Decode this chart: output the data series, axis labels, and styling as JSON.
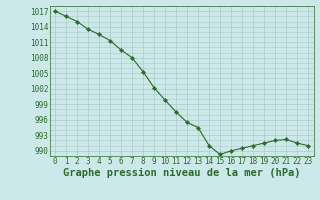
{
  "x": [
    0,
    1,
    2,
    3,
    4,
    5,
    6,
    7,
    8,
    9,
    10,
    11,
    12,
    13,
    14,
    15,
    16,
    17,
    18,
    19,
    20,
    21,
    22,
    23
  ],
  "y": [
    1017,
    1016.0,
    1015.0,
    1013.5,
    1012.5,
    1011.3,
    1009.5,
    1008.0,
    1005.3,
    1002.2,
    999.8,
    997.5,
    995.5,
    994.5,
    991.0,
    989.3,
    990.0,
    990.5,
    991.0,
    991.5,
    992.0,
    992.2,
    991.5,
    991.0
  ],
  "ylim": [
    989,
    1018
  ],
  "xlim": [
    -0.5,
    23.5
  ],
  "yticks": [
    990,
    993,
    996,
    999,
    1002,
    1005,
    1008,
    1011,
    1014,
    1017
  ],
  "xticks": [
    0,
    1,
    2,
    3,
    4,
    5,
    6,
    7,
    8,
    9,
    10,
    11,
    12,
    13,
    14,
    15,
    16,
    17,
    18,
    19,
    20,
    21,
    22,
    23
  ],
  "xlabel": "Graphe pression niveau de la mer (hPa)",
  "line_color": "#2d6a2d",
  "marker": "D",
  "marker_size": 2.2,
  "bg_color": "#cce8e8",
  "grid_color": "#aacaca",
  "tick_fontsize": 5.5,
  "xlabel_fontsize": 7.5,
  "xlabel_bold": true
}
